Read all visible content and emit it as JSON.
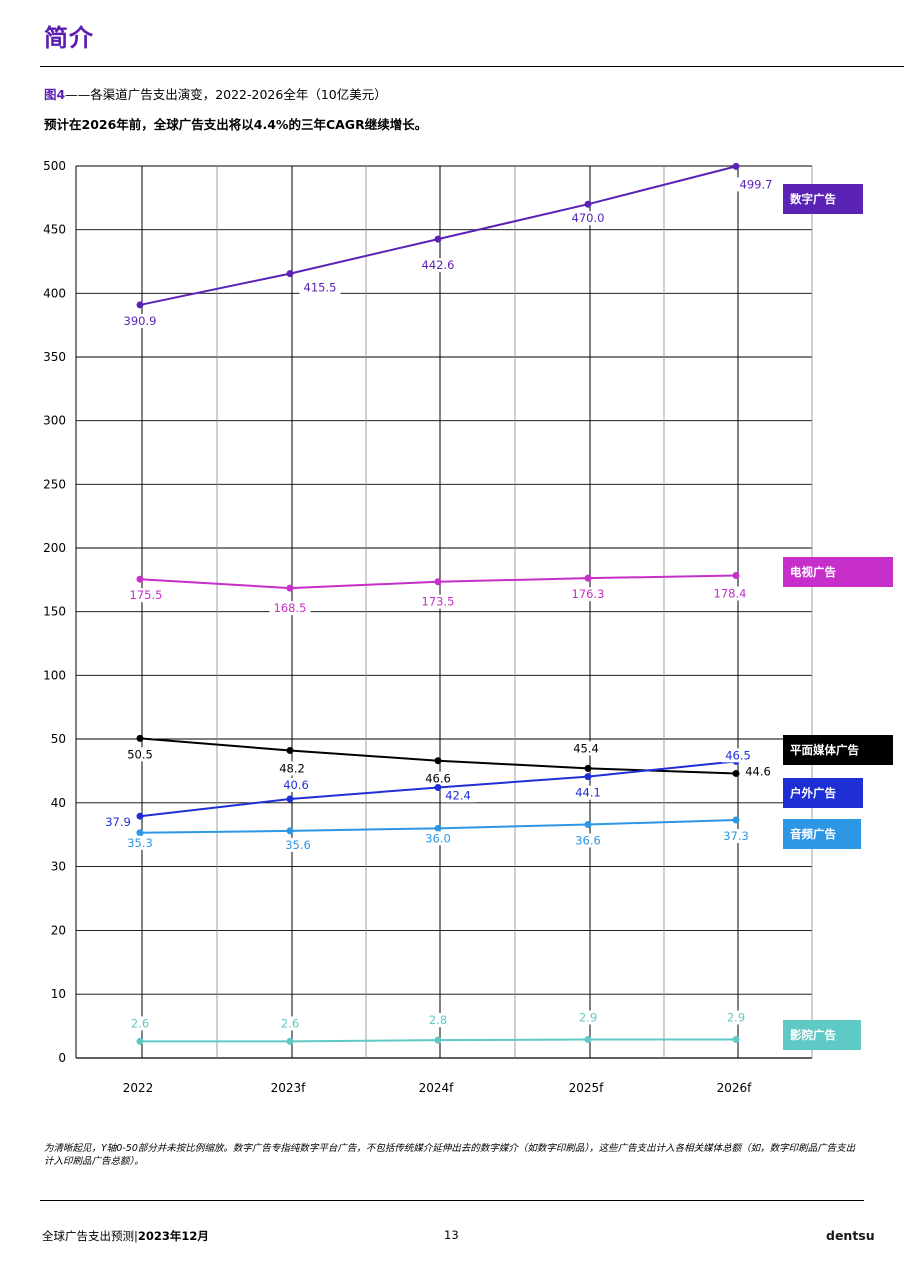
{
  "header": {
    "section_title": "简介",
    "figure_number": "图4",
    "figure_title": "——各渠道广告支出演变，2022-2026全年（10亿美元）",
    "subtitle": "预计在2026年前，全球广告支出将以4.4%的三年CAGR继续增长。"
  },
  "chart_data": {
    "type": "line",
    "categories": [
      "2022",
      "2023f",
      "2024f",
      "2025f",
      "2026f"
    ],
    "y_ticks": [
      "500",
      "450",
      "400",
      "350",
      "300",
      "250",
      "200",
      "150",
      "100",
      "50",
      "40",
      "30",
      "20",
      "10",
      "0"
    ],
    "axis_break": "Y轴0-50部分并未按比例缩放",
    "grid": true,
    "legend_placement": "right",
    "series": [
      {
        "name": "数字广告",
        "color": "#5b22b6",
        "values": [
          390.9,
          415.5,
          442.6,
          470.0,
          499.7
        ],
        "labels": [
          "390.9",
          "415.5",
          "442.6",
          "470.0",
          "499.7"
        ]
      },
      {
        "name": "电视广告",
        "color": "#c62fc9",
        "values": [
          175.5,
          168.5,
          173.5,
          176.3,
          178.4
        ],
        "labels": [
          "175.5",
          "168.5",
          "173.5",
          "176.3",
          "178.4"
        ]
      },
      {
        "name": "平面媒体广告",
        "color": "#000000",
        "values": [
          50.5,
          48.2,
          46.6,
          45.4,
          44.6
        ],
        "labels": [
          "50.5",
          "48.2",
          "46.6",
          "45.4",
          "44.6"
        ]
      },
      {
        "name": "户外广告",
        "color": "#1f2fd6",
        "values": [
          37.9,
          40.6,
          42.4,
          44.1,
          46.5
        ],
        "labels": [
          "37.9",
          "40.6",
          "42.4",
          "44.1",
          "46.5"
        ]
      },
      {
        "name": "音频广告",
        "color": "#2d97e6",
        "values": [
          35.3,
          35.6,
          36.0,
          36.6,
          37.3
        ],
        "labels": [
          "35.3",
          "35.6",
          "36.0",
          "36.6",
          "37.3"
        ]
      },
      {
        "name": "影院广告",
        "color": "#5fc9c5",
        "values": [
          2.6,
          2.6,
          2.8,
          2.9,
          2.9
        ],
        "labels": [
          "2.6",
          "2.6",
          "2.8",
          "2.9",
          "2.9"
        ]
      }
    ]
  },
  "footnote": "为清晰起见，Y轴0-50部分并未按比例缩放。数字广告专指纯数字平台广告，不包括传统媒介延伸出去的数字媒介（如数字印刷品），这些广告支出计入各相关媒体总额（如，数字印刷品广告支出计入印刷品广告总额）。",
  "footer": {
    "report_name": "全球广告支出预测|",
    "report_date": "2023年12月",
    "page_number": "13",
    "brand": "dentsu"
  }
}
